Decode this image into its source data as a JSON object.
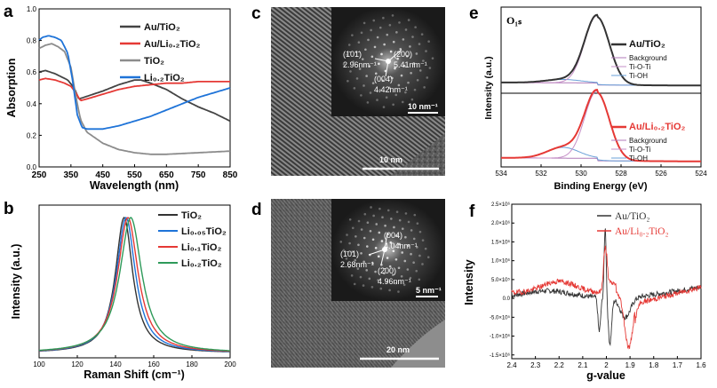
{
  "panel_labels": [
    "a",
    "b",
    "c",
    "d",
    "e",
    "f"
  ],
  "chart_data": [
    {
      "id": "a",
      "type": "line",
      "xlabel": "Wavelength (nm)",
      "ylabel": "Absorption",
      "xlim": [
        250,
        850
      ],
      "ylim": [
        0,
        1.0
      ],
      "xticks": [
        250,
        350,
        450,
        550,
        650,
        750,
        850
      ],
      "yticks": [
        0.0,
        0.2,
        0.4,
        0.6,
        0.8,
        1.0
      ],
      "ytick_labels": [
        "0.0",
        "0.2",
        "0.4",
        "0.6",
        "0.8",
        "1.0"
      ],
      "legend_position": "top-right",
      "series": [
        {
          "name": "Au/TiO₂",
          "color": "#444444",
          "x": [
            250,
            270,
            300,
            320,
            340,
            360,
            375,
            390,
            420,
            450,
            500,
            550,
            570,
            600,
            650,
            700,
            750,
            800,
            850
          ],
          "y": [
            0.6,
            0.61,
            0.59,
            0.57,
            0.55,
            0.5,
            0.43,
            0.44,
            0.46,
            0.48,
            0.52,
            0.55,
            0.55,
            0.53,
            0.49,
            0.43,
            0.38,
            0.34,
            0.29
          ]
        },
        {
          "name": "Au/Li₀.₂TiO₂",
          "color": "#e53935",
          "x": [
            250,
            270,
            300,
            330,
            350,
            365,
            380,
            400,
            450,
            500,
            550,
            600,
            650,
            700,
            750,
            800,
            850
          ],
          "y": [
            0.55,
            0.56,
            0.55,
            0.53,
            0.51,
            0.47,
            0.42,
            0.43,
            0.46,
            0.49,
            0.51,
            0.52,
            0.53,
            0.53,
            0.54,
            0.54,
            0.54
          ]
        },
        {
          "name": "TiO₂",
          "color": "#8c8c8c",
          "x": [
            250,
            270,
            290,
            310,
            330,
            350,
            365,
            380,
            400,
            450,
            500,
            550,
            600,
            650,
            700,
            750,
            800,
            850
          ],
          "y": [
            0.75,
            0.77,
            0.78,
            0.76,
            0.73,
            0.63,
            0.45,
            0.3,
            0.22,
            0.15,
            0.11,
            0.09,
            0.08,
            0.08,
            0.085,
            0.09,
            0.095,
            0.1
          ]
        },
        {
          "name": "Li₀.₂TiO₂",
          "color": "#1e73d8",
          "x": [
            250,
            260,
            280,
            300,
            320,
            340,
            355,
            370,
            385,
            400,
            450,
            500,
            550,
            600,
            650,
            700,
            750,
            800,
            850
          ],
          "y": [
            0.8,
            0.82,
            0.83,
            0.82,
            0.8,
            0.72,
            0.55,
            0.33,
            0.25,
            0.24,
            0.24,
            0.26,
            0.29,
            0.32,
            0.36,
            0.4,
            0.44,
            0.47,
            0.5
          ]
        }
      ]
    },
    {
      "id": "b",
      "type": "line",
      "xlabel": "Raman Shift (cm⁻¹)",
      "ylabel": "Intensity (a.u.)",
      "xlim": [
        100,
        200
      ],
      "xticks": [
        100,
        120,
        140,
        160,
        180,
        200
      ],
      "legend_position": "top-right",
      "series": [
        {
          "name": "TiO₂",
          "color": "#333333",
          "center": 144.5,
          "width": 5.5
        },
        {
          "name": "Li₀.₀₅TiO₂",
          "color": "#1e73d8",
          "center": 145.5,
          "width": 6.0
        },
        {
          "name": "Li₀.₁TiO₂",
          "color": "#e53935",
          "center": 146.5,
          "width": 6.5
        },
        {
          "name": "Li₀.₂TiO₂",
          "color": "#2e9a5a",
          "center": 148.0,
          "width": 7.0
        }
      ]
    },
    {
      "id": "e",
      "type": "line",
      "title": "O₁ₛ",
      "xlabel": "Binding Energy (eV)",
      "ylabel": "Intensity (a.u.)",
      "xlim": [
        534,
        524
      ],
      "xticks": [
        534,
        532,
        530,
        528,
        526,
        524
      ],
      "subpanels": [
        {
          "legend": [
            "Au/TiO₂",
            "Background",
            "Ti-O-Ti",
            "Ti-OH"
          ],
          "colors": [
            "#333333",
            "#b07ab8",
            "#c58fc7",
            "#6aa0d8"
          ]
        },
        {
          "legend": [
            "Au/Li₀.₂TiO₂",
            "Background",
            "Ti-O-Ti",
            "Ti-OH"
          ],
          "colors": [
            "#e53935",
            "#b07ab8",
            "#c58fc7",
            "#6aa0d8"
          ]
        }
      ]
    },
    {
      "id": "f",
      "type": "line",
      "xlabel": "g-value",
      "ylabel": "Intensity",
      "xlim": [
        2.4,
        1.6
      ],
      "xticks": [
        2.4,
        2.3,
        2.2,
        2.1,
        2.0,
        1.9,
        1.8,
        1.7,
        1.6
      ],
      "xtick_labels": [
        "2.4",
        "2.3",
        "2.2",
        "2.1",
        "2",
        "1.9",
        "1.8",
        "1.7",
        "1.6"
      ],
      "ylim": [
        -1600000.0,
        2500000.0
      ],
      "yticks": [
        -1500000.0,
        -1000000.0,
        -500000.0,
        0,
        500000.0,
        1000000.0,
        1500000.0,
        2000000.0,
        2500000.0
      ],
      "ytick_labels": [
        "-1.5×10⁶",
        "-1.0×10⁶",
        "-5.0×10⁵",
        "0.0",
        "5.0×10⁵",
        "1.0×10⁶",
        "1.5×10⁶",
        "2.0×10⁶",
        "2.5×10⁶"
      ],
      "legend_position": "top-right",
      "series": [
        {
          "name": "Au/TiO₂",
          "color": "#333333"
        },
        {
          "name": "Au/Li₀.₂TiO₂",
          "color": "#e53935"
        }
      ]
    }
  ],
  "images": {
    "c": {
      "fft_labels": [
        "(1̄01̄)",
        "2.96nm⁻¹",
        "(2̄00)",
        "5.41nm⁻¹",
        "(004̄)",
        "4.42nm⁻¹"
      ],
      "fft_scale": "10 nm⁻¹",
      "scale": "10 nm"
    },
    "d": {
      "fft_labels": [
        "(004)",
        "4.04nm⁻¹",
        "(1̄01)",
        "2.68nm⁻¹",
        "(2̄00)",
        "4.96nm⁻¹"
      ],
      "fft_scale": "5 nm⁻¹",
      "scale": "20 nm"
    }
  },
  "colors": {
    "black": "#333333",
    "red": "#e53935",
    "grey": "#8c8c8c",
    "blue": "#1e73d8",
    "green": "#2e9a5a",
    "pink": "#c58fc7"
  }
}
